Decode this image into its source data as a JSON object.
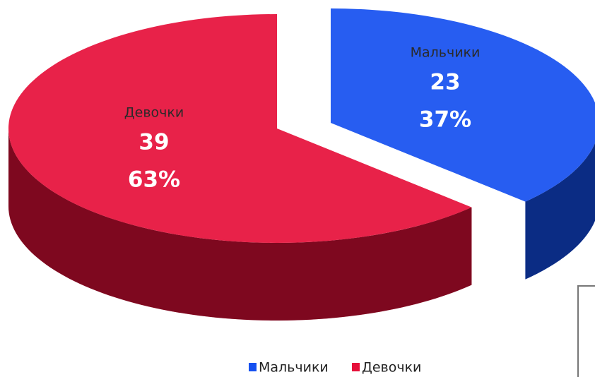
{
  "chart_data": {
    "type": "pie",
    "categories": [
      "Мальчики",
      "Девочки"
    ],
    "values": [
      23,
      39
    ],
    "percent_labels": [
      "37%",
      "63%"
    ],
    "colors": [
      "#1550f0",
      "#e6103a"
    ],
    "legend": "bottom"
  }
}
